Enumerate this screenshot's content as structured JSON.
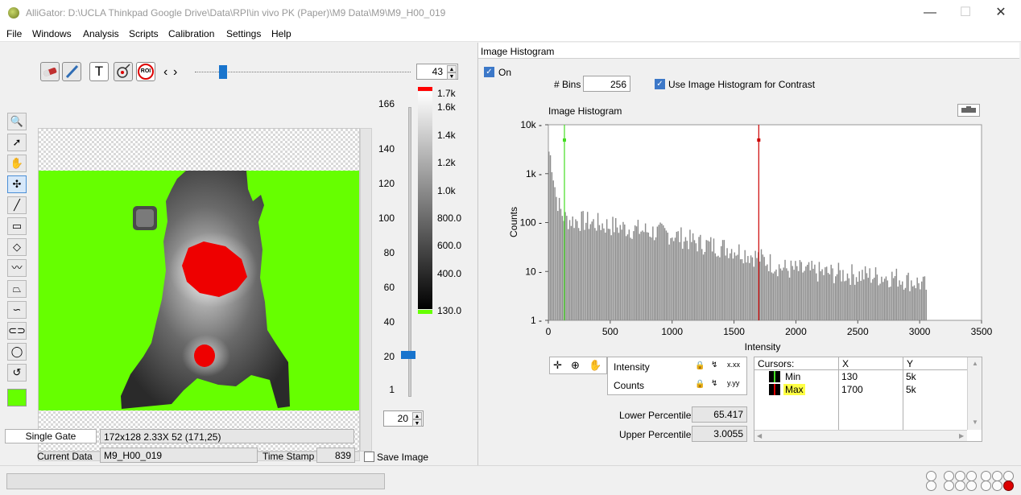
{
  "window": {
    "title": "AlliGator: D:\\UCLA Thinkpad Google Drive\\Data\\RPI\\in vivo PK (Paper)\\M9 Data\\M9\\M9_H00_019",
    "minimize_icon": "—",
    "maximize_icon": "☐",
    "close_icon": "✕"
  },
  "menu": [
    "File",
    "Windows",
    "Analysis",
    "Scripts",
    "Calibration",
    "Settings",
    "Help"
  ],
  "toolbar": {
    "frame_value": "43",
    "text_tool_label": "T",
    "roi_label": "ROI",
    "nav_left": "‹",
    "nav_right": "›",
    "slider_level": 0.13
  },
  "tools": [
    "🔍",
    "➚",
    "✋",
    "✣",
    "╱",
    "▭",
    "◇",
    "〰",
    "⏢",
    "∽",
    "⊂⊃",
    "◯",
    "↺"
  ],
  "axis": {
    "y_ticks": [
      "166",
      "140",
      "120",
      "100",
      "80",
      "60",
      "40",
      "20",
      "1"
    ],
    "gate_value": "20"
  },
  "colorbar": {
    "labels": [
      "1.7k",
      "1.6k",
      "1.4k",
      "1.2k",
      "1.0k",
      "800.0",
      "600.0",
      "400.0",
      "130.0"
    ],
    "over_color": "#ff0000",
    "under_color": "#66ff00"
  },
  "info": {
    "mode": "Single Gate",
    "dims": "172x128 2.33X 52    (171,25)",
    "current_data_label": "Current Data",
    "current_data_value": "M9_H00_019",
    "time_stamp_label": "Time Stamp",
    "time_stamp_value": "839",
    "save_image_label": "Save Image",
    "swatch_color": "#66ff00"
  },
  "histogram_panel": {
    "header": "Image Histogram",
    "on_label": "On",
    "bins_label": "# Bins",
    "bins_value": "256",
    "use_label": "Use Image Histogram for Contrast",
    "cursors_header": "Cursors:",
    "col_x": "X",
    "col_y": "Y",
    "cursors": [
      {
        "name": "Min",
        "x": "130",
        "y": "5k"
      },
      {
        "name": "Max",
        "x": "1700",
        "y": "5k"
      }
    ],
    "scale_rows": [
      "Intensity",
      "Counts"
    ],
    "lower_percentile_label": "Lower Percentile",
    "lower_percentile_value": "65.417",
    "upper_percentile_label": "Upper Percentile",
    "upper_percentile_value": "3.0055",
    "lock_icon": "🔒",
    "zoom_icon": "⊕",
    "pan_icon": "✋"
  },
  "chart_data": {
    "type": "bar",
    "title": "Image Histogram",
    "xlabel": "Intensity",
    "ylabel": "Counts",
    "xlim": [
      0,
      3500
    ],
    "ylim": [
      1,
      10000
    ],
    "y_scale": "log",
    "x_ticks": [
      "0",
      "500",
      "1000",
      "1500",
      "2000",
      "2500",
      "3000",
      "3500"
    ],
    "y_ticks": [
      "1",
      "10",
      "100",
      "1k",
      "10k"
    ],
    "bar_color": "#8c8c8c",
    "bin_width": 12,
    "cursor_min": 130,
    "cursor_max": 1700,
    "cursor_min_color": "#44dd22",
    "cursor_max_color": "#cc0000",
    "profile_x": [
      0,
      20,
      60,
      100,
      130,
      150,
      300,
      500,
      800,
      1000,
      1200,
      1500,
      1700,
      1900,
      2200,
      2500,
      2800,
      3000,
      3050
    ],
    "profile_counts": [
      3000,
      2000,
      350,
      170,
      130,
      120,
      110,
      90,
      70,
      60,
      40,
      30,
      20,
      12,
      10,
      9,
      8,
      6,
      5
    ]
  },
  "status": {
    "led_active_color": "#dd0000"
  }
}
